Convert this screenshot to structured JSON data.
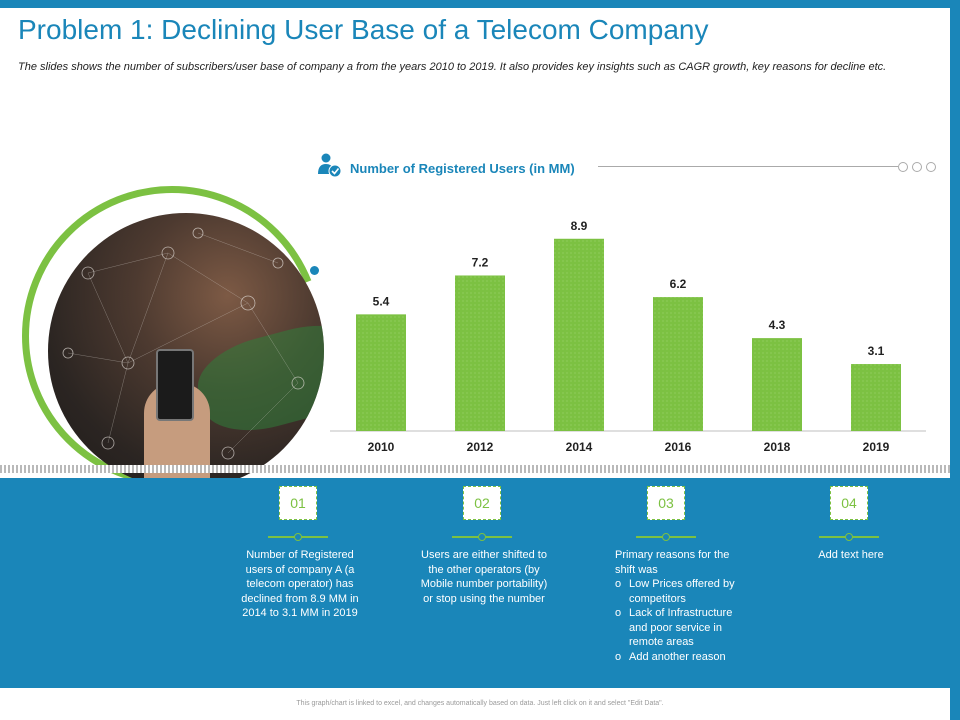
{
  "title": "Problem 1: Declining User Base of a Telecom Company",
  "subtitle": "The slides shows the number of subscribers/user base of company a from the years 2010 to 2019. It also provides key insights such as CAGR growth, key reasons for decline etc.",
  "chart_header": {
    "icon": "users-icon"
  },
  "chart_data": {
    "type": "bar",
    "title": "Number of Registered Users (in MM)",
    "categories": [
      "2010",
      "2012",
      "2014",
      "2016",
      "2018",
      "2019"
    ],
    "values": [
      5.4,
      7.2,
      8.9,
      6.2,
      4.3,
      3.1
    ],
    "value_labels": [
      "5.4",
      "7.2",
      "8.9",
      "6.2",
      "4.3",
      "3.1"
    ],
    "ylim": [
      0,
      10
    ],
    "grid": false,
    "bar_color": "#7cc142"
  },
  "steps": [
    {
      "number": "01",
      "text": "Number of Registered users of company A (a telecom operator) has declined from 8.9 MM  in 2014 to 3.1 MM  in 2019"
    },
    {
      "number": "02",
      "text": "Users are either shifted to the other operators (by Mobile number portability) or stop using the number"
    },
    {
      "number": "03",
      "intro": "Primary reasons for the shift was",
      "bullets": [
        "Low Prices offered by competitors",
        "Lack of Infrastructure and poor service in remote areas",
        "Add another reason"
      ]
    },
    {
      "number": "04",
      "text": "Add text here"
    }
  ],
  "footnote": "This graph/chart is linked to excel, and changes automatically based on data. Just left click on it and select \"Edit Data\".",
  "colors": {
    "accent_blue": "#1a86b9",
    "accent_green": "#7cc142"
  }
}
